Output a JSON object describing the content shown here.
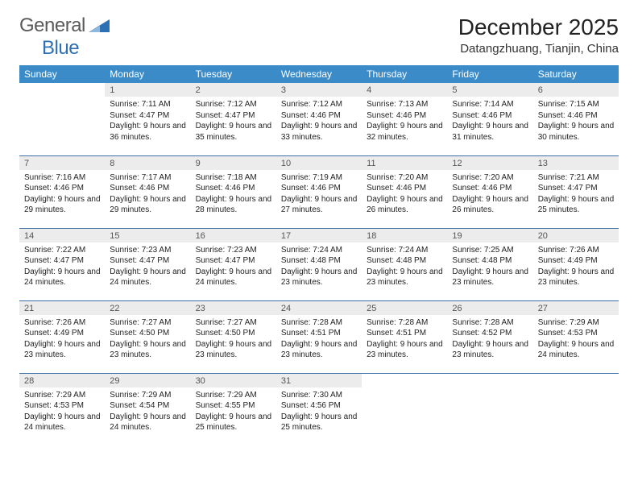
{
  "brand": {
    "text1": "General",
    "text2": "Blue"
  },
  "title": "December 2025",
  "location": "Datangzhuang, Tianjin, China",
  "colors": {
    "header_bg": "#3b8bc8",
    "header_text": "#ffffff",
    "daynum_bg": "#ececec",
    "rule": "#3b6fa8",
    "logo_gray": "#5a5a5a",
    "logo_blue": "#2f6fb3"
  },
  "dow": [
    "Sunday",
    "Monday",
    "Tuesday",
    "Wednesday",
    "Thursday",
    "Friday",
    "Saturday"
  ],
  "layout": {
    "first_weekday_index": 1,
    "days_in_month": 31,
    "weeks": 5
  },
  "days": {
    "1": {
      "sunrise": "7:11 AM",
      "sunset": "4:47 PM",
      "daylight": "9 hours and 36 minutes."
    },
    "2": {
      "sunrise": "7:12 AM",
      "sunset": "4:47 PM",
      "daylight": "9 hours and 35 minutes."
    },
    "3": {
      "sunrise": "7:12 AM",
      "sunset": "4:46 PM",
      "daylight": "9 hours and 33 minutes."
    },
    "4": {
      "sunrise": "7:13 AM",
      "sunset": "4:46 PM",
      "daylight": "9 hours and 32 minutes."
    },
    "5": {
      "sunrise": "7:14 AM",
      "sunset": "4:46 PM",
      "daylight": "9 hours and 31 minutes."
    },
    "6": {
      "sunrise": "7:15 AM",
      "sunset": "4:46 PM",
      "daylight": "9 hours and 30 minutes."
    },
    "7": {
      "sunrise": "7:16 AM",
      "sunset": "4:46 PM",
      "daylight": "9 hours and 29 minutes."
    },
    "8": {
      "sunrise": "7:17 AM",
      "sunset": "4:46 PM",
      "daylight": "9 hours and 29 minutes."
    },
    "9": {
      "sunrise": "7:18 AM",
      "sunset": "4:46 PM",
      "daylight": "9 hours and 28 minutes."
    },
    "10": {
      "sunrise": "7:19 AM",
      "sunset": "4:46 PM",
      "daylight": "9 hours and 27 minutes."
    },
    "11": {
      "sunrise": "7:20 AM",
      "sunset": "4:46 PM",
      "daylight": "9 hours and 26 minutes."
    },
    "12": {
      "sunrise": "7:20 AM",
      "sunset": "4:46 PM",
      "daylight": "9 hours and 26 minutes."
    },
    "13": {
      "sunrise": "7:21 AM",
      "sunset": "4:47 PM",
      "daylight": "9 hours and 25 minutes."
    },
    "14": {
      "sunrise": "7:22 AM",
      "sunset": "4:47 PM",
      "daylight": "9 hours and 24 minutes."
    },
    "15": {
      "sunrise": "7:23 AM",
      "sunset": "4:47 PM",
      "daylight": "9 hours and 24 minutes."
    },
    "16": {
      "sunrise": "7:23 AM",
      "sunset": "4:47 PM",
      "daylight": "9 hours and 24 minutes."
    },
    "17": {
      "sunrise": "7:24 AM",
      "sunset": "4:48 PM",
      "daylight": "9 hours and 23 minutes."
    },
    "18": {
      "sunrise": "7:24 AM",
      "sunset": "4:48 PM",
      "daylight": "9 hours and 23 minutes."
    },
    "19": {
      "sunrise": "7:25 AM",
      "sunset": "4:48 PM",
      "daylight": "9 hours and 23 minutes."
    },
    "20": {
      "sunrise": "7:26 AM",
      "sunset": "4:49 PM",
      "daylight": "9 hours and 23 minutes."
    },
    "21": {
      "sunrise": "7:26 AM",
      "sunset": "4:49 PM",
      "daylight": "9 hours and 23 minutes."
    },
    "22": {
      "sunrise": "7:27 AM",
      "sunset": "4:50 PM",
      "daylight": "9 hours and 23 minutes."
    },
    "23": {
      "sunrise": "7:27 AM",
      "sunset": "4:50 PM",
      "daylight": "9 hours and 23 minutes."
    },
    "24": {
      "sunrise": "7:28 AM",
      "sunset": "4:51 PM",
      "daylight": "9 hours and 23 minutes."
    },
    "25": {
      "sunrise": "7:28 AM",
      "sunset": "4:51 PM",
      "daylight": "9 hours and 23 minutes."
    },
    "26": {
      "sunrise": "7:28 AM",
      "sunset": "4:52 PM",
      "daylight": "9 hours and 23 minutes."
    },
    "27": {
      "sunrise": "7:29 AM",
      "sunset": "4:53 PM",
      "daylight": "9 hours and 24 minutes."
    },
    "28": {
      "sunrise": "7:29 AM",
      "sunset": "4:53 PM",
      "daylight": "9 hours and 24 minutes."
    },
    "29": {
      "sunrise": "7:29 AM",
      "sunset": "4:54 PM",
      "daylight": "9 hours and 24 minutes."
    },
    "30": {
      "sunrise": "7:29 AM",
      "sunset": "4:55 PM",
      "daylight": "9 hours and 25 minutes."
    },
    "31": {
      "sunrise": "7:30 AM",
      "sunset": "4:56 PM",
      "daylight": "9 hours and 25 minutes."
    }
  },
  "labels": {
    "sunrise": "Sunrise:",
    "sunset": "Sunset:",
    "daylight": "Daylight:"
  }
}
